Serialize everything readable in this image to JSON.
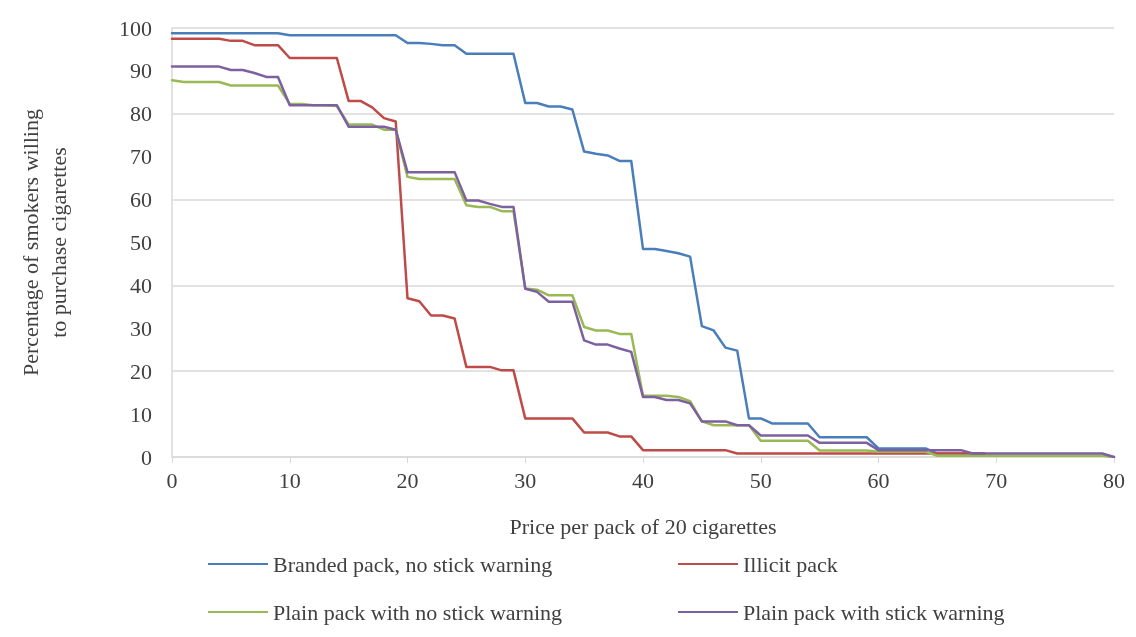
{
  "chart_data": {
    "type": "line",
    "xlabel": "Price per pack of 20 cigarettes",
    "ylabel": "Percentage of smokers willing\nto purchase cigarettes",
    "x": [
      0,
      1,
      2,
      3,
      4,
      5,
      6,
      7,
      8,
      9,
      10,
      11,
      12,
      13,
      14,
      15,
      16,
      17,
      18,
      19,
      20,
      21,
      22,
      23,
      24,
      25,
      26,
      27,
      28,
      29,
      30,
      31,
      32,
      33,
      34,
      35,
      36,
      37,
      38,
      39,
      40,
      41,
      42,
      43,
      44,
      45,
      46,
      47,
      48,
      49,
      50,
      51,
      52,
      53,
      54,
      55,
      56,
      57,
      58,
      59,
      60,
      61,
      62,
      63,
      64,
      65,
      66,
      67,
      68,
      69,
      70,
      71,
      72,
      73,
      74,
      75,
      76,
      77,
      78,
      79,
      80
    ],
    "series": [
      {
        "name": "Branded pack, no stick warning",
        "color": "#4a7ebb",
        "values": [
          98.8,
          98.8,
          98.8,
          98.8,
          98.8,
          98.8,
          98.8,
          98.8,
          98.8,
          98.8,
          98.3,
          98.3,
          98.3,
          98.3,
          98.3,
          98.3,
          98.3,
          98.3,
          98.3,
          98.3,
          96.5,
          96.5,
          96.3,
          96,
          96,
          94,
          94,
          94,
          94,
          94,
          82.5,
          82.5,
          81.7,
          81.7,
          81,
          71.2,
          70.7,
          70.3,
          69,
          69,
          48.5,
          48.5,
          48,
          47.5,
          46.7,
          30.5,
          29.5,
          25.5,
          24.8,
          9,
          9,
          7.8,
          7.8,
          7.8,
          7.8,
          4.6,
          4.6,
          4.6,
          4.6,
          4.6,
          2,
          2,
          2,
          2,
          2,
          0.8,
          0.8,
          0.8,
          0.8,
          0.8,
          null,
          null,
          null,
          null,
          null,
          null,
          null,
          null,
          null,
          null,
          null
        ]
      },
      {
        "name": "Illicit pack",
        "color": "#be4b48",
        "values": [
          97.5,
          97.5,
          97.5,
          97.5,
          97.5,
          97,
          97,
          96,
          96,
          96,
          93,
          93,
          93,
          93,
          93,
          83,
          83,
          81.5,
          79,
          78.2,
          37,
          36.3,
          33,
          33,
          32.3,
          21,
          21,
          21,
          20.2,
          20.2,
          9,
          9,
          9,
          9,
          9,
          5.7,
          5.7,
          5.7,
          4.8,
          4.8,
          1.6,
          1.6,
          1.6,
          1.6,
          1.6,
          1.6,
          1.6,
          1.6,
          0.8,
          0.8,
          0.8,
          0.8,
          0.8,
          0.8,
          0.8,
          0.8,
          0.8,
          0.8,
          0.8,
          0.8,
          0.8,
          0.8,
          0.8,
          0.8,
          0.8,
          0.8,
          0.8,
          0.8,
          0.8,
          0.8,
          null,
          null,
          null,
          null,
          null,
          null,
          null,
          null,
          null,
          null,
          null
        ]
      },
      {
        "name": "Plain pack with no stick warning",
        "color": "#98b954",
        "values": [
          87.8,
          87.4,
          87.4,
          87.4,
          87.4,
          86.6,
          86.6,
          86.6,
          86.6,
          86.6,
          82.3,
          82.3,
          82,
          82,
          81.8,
          77.5,
          77.5,
          77.5,
          76.3,
          76.3,
          65.3,
          64.8,
          64.8,
          64.8,
          64.8,
          58.7,
          58.3,
          58.3,
          57.3,
          57.3,
          39.3,
          39,
          37.7,
          37.7,
          37.7,
          30.3,
          29.5,
          29.5,
          28.7,
          28.7,
          14.3,
          14.3,
          14.3,
          14,
          13,
          8.3,
          7.4,
          7.4,
          7.4,
          7.4,
          3.8,
          3.8,
          3.8,
          3.8,
          3.8,
          1.5,
          1.5,
          1.5,
          1.5,
          1.5,
          1.2,
          1.2,
          1.2,
          1.2,
          1.2,
          0.3,
          0.3,
          0.3,
          0.3,
          0.3,
          0.3,
          0.3,
          0.3,
          0.3,
          0.3,
          0.3,
          0.3,
          0.3,
          0.3,
          0.3,
          0
        ]
      },
      {
        "name": "Plain pack with stick warning",
        "color": "#7d60a0",
        "values": [
          91,
          91,
          91,
          91,
          91,
          90.2,
          90.2,
          89.5,
          88.6,
          88.6,
          82,
          82,
          82,
          82,
          82,
          77,
          77,
          77,
          77,
          76.3,
          66.4,
          66.4,
          66.4,
          66.4,
          66.4,
          59.8,
          59.8,
          59,
          58.3,
          58.3,
          39.2,
          38.5,
          36.2,
          36.2,
          36.2,
          27.2,
          26.2,
          26.2,
          25.3,
          24.5,
          14,
          14,
          13.3,
          13.3,
          12.5,
          8.3,
          8.3,
          8.3,
          7.4,
          7.4,
          5,
          5,
          5,
          5,
          5,
          3.3,
          3.3,
          3.3,
          3.3,
          3.3,
          1.6,
          1.6,
          1.6,
          1.6,
          1.6,
          1.6,
          1.6,
          1.6,
          0.8,
          0.8,
          0.8,
          0.8,
          0.8,
          0.8,
          0.8,
          0.8,
          0.8,
          0.8,
          0.8,
          0.8,
          0
        ]
      }
    ],
    "xlim": [
      0,
      80
    ],
    "xticks": [
      0,
      10,
      20,
      30,
      40,
      50,
      60,
      70,
      80
    ],
    "ylim": [
      0,
      100
    ],
    "yticks": [
      0,
      10,
      20,
      30,
      40,
      50,
      60,
      70,
      80,
      90,
      100
    ],
    "grid": "y",
    "legend": "bottom",
    "marker": "none",
    "line_style": "solid"
  }
}
